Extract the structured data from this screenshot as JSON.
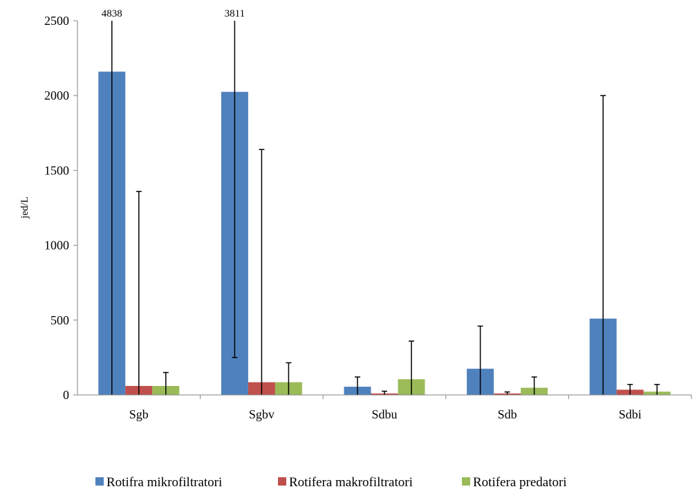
{
  "chart_data": {
    "type": "bar",
    "ylabel": "jed/L",
    "xlabel": "",
    "ylim": [
      0,
      2500
    ],
    "yticks": [
      0,
      500,
      1000,
      1500,
      2000,
      2500
    ],
    "categories": [
      "Sgb",
      "Sgbv",
      "Sdbu",
      "Sdb",
      "Sdbi"
    ],
    "legend_position": "bottom",
    "series": [
      {
        "name": "Rotifra mikrofiltratori",
        "color": "#4f81bd",
        "values": [
          2160,
          2025,
          55,
          175,
          510
        ],
        "error_low": [
          0,
          250,
          0,
          0,
          0
        ],
        "error_high": [
          4838,
          3811,
          120,
          460,
          2000
        ]
      },
      {
        "name": "Rotifera makrofiltratori",
        "color": "#c0504d",
        "values": [
          60,
          85,
          10,
          10,
          35
        ],
        "error_low": [
          0,
          0,
          0,
          0,
          0
        ],
        "error_high": [
          1360,
          1640,
          25,
          20,
          70
        ]
      },
      {
        "name": "Rotifera predatori",
        "color": "#9bbb59",
        "values": [
          60,
          85,
          105,
          48,
          22
        ],
        "error_low": [
          0,
          0,
          0,
          0,
          0
        ],
        "error_high": [
          150,
          215,
          360,
          120,
          70
        ]
      }
    ],
    "annotations": [
      {
        "category": "Sgb",
        "text": "4838"
      },
      {
        "category": "Sgbv",
        "text": "3811"
      }
    ]
  }
}
